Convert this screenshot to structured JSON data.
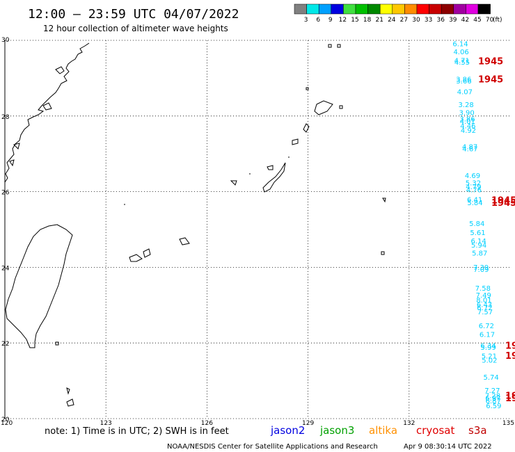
{
  "header": {
    "title": "12:00 — 23:59 UTC 04/07/2022",
    "subtitle": "12 hour collection of altimeter wave heights"
  },
  "colorbar": {
    "unit": "(ft)",
    "bins": [
      {
        "label": "3",
        "color": "#808080"
      },
      {
        "label": "6",
        "color": "#00e8e8"
      },
      {
        "label": "9",
        "color": "#00a0ff"
      },
      {
        "label": "12",
        "color": "#0000e0"
      },
      {
        "label": "15",
        "color": "#40e040"
      },
      {
        "label": "18",
        "color": "#00c000"
      },
      {
        "label": "21",
        "color": "#008800"
      },
      {
        "label": "24",
        "color": "#ffff00"
      },
      {
        "label": "27",
        "color": "#ffc800"
      },
      {
        "label": "30",
        "color": "#ff8c00"
      },
      {
        "label": "33",
        "color": "#ff0000"
      },
      {
        "label": "36",
        "color": "#c80000"
      },
      {
        "label": "39",
        "color": "#8c0000"
      },
      {
        "label": "42",
        "color": "#a000a0"
      },
      {
        "label": "45",
        "color": "#e000e0"
      },
      {
        "label": "70",
        "color": "#000000"
      }
    ]
  },
  "axes": {
    "lon_ticks": [
      "120",
      "123",
      "126",
      "129",
      "132",
      "135"
    ],
    "lat_ticks": [
      "20",
      "22",
      "24",
      "26",
      "28",
      "30"
    ],
    "lon_range": [
      120,
      135
    ],
    "lat_range": [
      20,
      30
    ]
  },
  "footer": {
    "note": "note: 1) Time is in UTC; 2) SWH is in feet",
    "credit": "NOAA/NESDIS Center for Satellite Applications and Research",
    "timestamp": "Apr  9 08:30:14 UTC 2022",
    "missions": [
      {
        "name": "jason2",
        "color": "#0000e0"
      },
      {
        "name": "jason3",
        "color": "#00a000"
      },
      {
        "name": "altika",
        "color": "#ff9000"
      },
      {
        "name": "cryosat",
        "color": "#e00000"
      },
      {
        "name": "s3a",
        "color": "#c00000"
      }
    ]
  },
  "observations": [
    {
      "lat": 29.92,
      "text": "6.14"
    },
    {
      "lat": 29.71,
      "text": "4.06"
    },
    {
      "lat": 29.48,
      "text": "4.71"
    },
    {
      "lat": 29.43,
      "text": "4.55"
    },
    {
      "lat": 28.98,
      "text": "3.86"
    },
    {
      "lat": 28.93,
      "text": "3.66"
    },
    {
      "lat": 28.65,
      "text": "4.07"
    },
    {
      "lat": 28.31,
      "text": "3.28"
    },
    {
      "lat": 28.1,
      "text": "3.90"
    },
    {
      "lat": 27.93,
      "text": "3.86"
    },
    {
      "lat": 27.87,
      "text": "4.01"
    },
    {
      "lat": 27.75,
      "text": "4.46"
    },
    {
      "lat": 27.63,
      "text": "4.92"
    },
    {
      "lat": 27.2,
      "text": "4.87"
    },
    {
      "lat": 27.14,
      "text": "4.67"
    },
    {
      "lat": 26.43,
      "text": "4.69"
    },
    {
      "lat": 26.24,
      "text": "5.32"
    },
    {
      "lat": 26.14,
      "text": "4.79"
    },
    {
      "lat": 26.06,
      "text": "4.76"
    },
    {
      "lat": 25.8,
      "text": "6.41"
    },
    {
      "lat": 25.72,
      "text": "5.84"
    },
    {
      "lat": 25.17,
      "text": "5.84"
    },
    {
      "lat": 24.93,
      "text": "5.61"
    },
    {
      "lat": 24.71,
      "text": "6.14"
    },
    {
      "lat": 24.6,
      "text": "5.94"
    },
    {
      "lat": 24.38,
      "text": "5.87"
    },
    {
      "lat": 24.01,
      "text": "7.39"
    },
    {
      "lat": 23.95,
      "text": "7.09"
    },
    {
      "lat": 23.46,
      "text": "7.58"
    },
    {
      "lat": 23.27,
      "text": "7.49"
    },
    {
      "lat": 23.14,
      "text": "8.01"
    },
    {
      "lat": 23.02,
      "text": "6.43"
    },
    {
      "lat": 22.94,
      "text": "6.72"
    },
    {
      "lat": 22.83,
      "text": "7.57"
    },
    {
      "lat": 22.46,
      "text": "6.72"
    },
    {
      "lat": 22.23,
      "text": "6.17"
    },
    {
      "lat": 21.94,
      "text": "6.34"
    },
    {
      "lat": 21.89,
      "text": "5.99"
    },
    {
      "lat": 21.66,
      "text": "5.21"
    },
    {
      "lat": 21.55,
      "text": "5.02"
    },
    {
      "lat": 21.1,
      "text": "5.74"
    },
    {
      "lat": 20.75,
      "text": "7.27"
    },
    {
      "lat": 20.62,
      "text": "7.28"
    },
    {
      "lat": 20.55,
      "text": "6.97"
    },
    {
      "lat": 20.48,
      "text": "6.87"
    },
    {
      "lat": 20.35,
      "text": "6.59"
    }
  ],
  "cyclone_labels": [
    {
      "lat": 29.46,
      "text": "1945"
    },
    {
      "lat": 28.98,
      "text": "1945"
    },
    {
      "lat": 25.78,
      "text": "1945"
    },
    {
      "lat": 25.72,
      "text": "1945"
    },
    {
      "lat": 21.94,
      "text": "19"
    },
    {
      "lat": 21.67,
      "text": "19"
    },
    {
      "lat": 20.62,
      "text": "19"
    },
    {
      "lat": 20.55,
      "text": "19"
    }
  ]
}
